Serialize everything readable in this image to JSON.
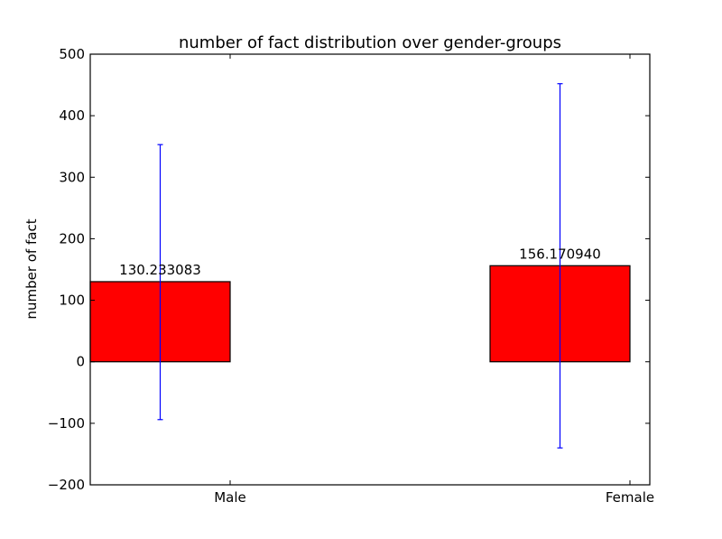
{
  "chart_data": {
    "type": "bar",
    "title": "number of fact distribution over gender-groups",
    "xlabel": "",
    "ylabel": "number of fact",
    "categories": [
      "Male",
      "Female"
    ],
    "values": [
      130.233083,
      156.17094
    ],
    "value_labels": [
      "130.233083",
      "156.170940"
    ],
    "error_bars": [
      {
        "low": -94,
        "high": 353
      },
      {
        "low": -140,
        "high": 452
      }
    ],
    "ylim": [
      -200,
      500
    ],
    "yticks": [
      -200,
      -100,
      0,
      100,
      200,
      300,
      400,
      500
    ],
    "ytick_labels": [
      "−200",
      "−100",
      "0",
      "100",
      "200",
      "300",
      "400",
      "500"
    ],
    "grid": false,
    "bar_color": "#ff0000",
    "errorbar_color": "#0000ff"
  }
}
